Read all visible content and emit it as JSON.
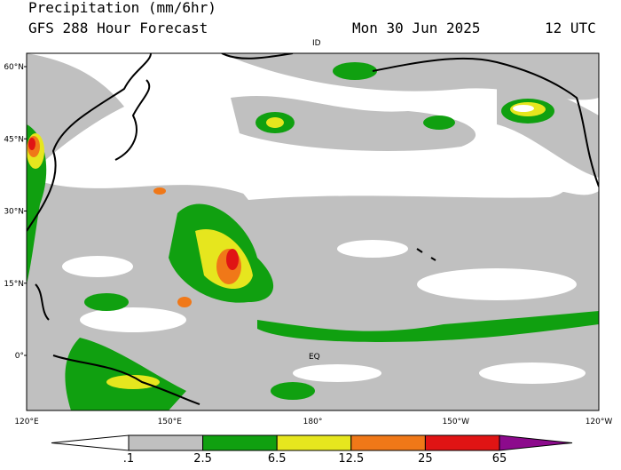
{
  "header": {
    "title": "Precipitation (mm/6hr)",
    "subtitle": "GFS 288 Hour Forecast",
    "date": "Mon 30 Jun 2025",
    "time": "12 UTC"
  },
  "map": {
    "lat_labels": [
      "60°N",
      "45°N",
      "30°N",
      "15°N",
      "0°"
    ],
    "lon_labels": [
      "120°E",
      "150°E",
      "180°",
      "150°W",
      "120°W"
    ],
    "annotations": [
      "ID",
      "EQ"
    ]
  },
  "legend": {
    "levels": [
      {
        "label": ".1",
        "color": "#c0c0c0"
      },
      {
        "label": "2.5",
        "color": "#10a010"
      },
      {
        "label": "6.5",
        "color": "#e6e61e"
      },
      {
        "label": "12.5",
        "color": "#f07818"
      },
      {
        "label": "25",
        "color": "#e01414"
      },
      {
        "label": "65",
        "color": "#8c0a8c"
      }
    ]
  }
}
